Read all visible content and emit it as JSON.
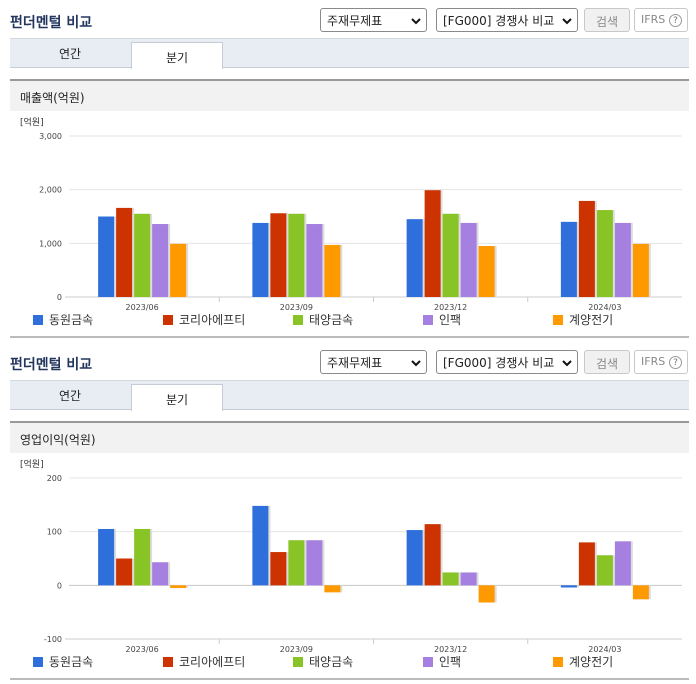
{
  "panels": [
    {
      "title": "펀더멘털 비교",
      "select1": "주재무제표",
      "select2": "[FG000] 경쟁사 비교",
      "button": "검색",
      "ifrs": "IFRS",
      "help": "?",
      "tabs": [
        "연간",
        "분기"
      ]
    },
    {
      "title": "펀더멘털 비교",
      "select1": "주재무제표",
      "select2": "[FG000] 경쟁사 비교",
      "button": "검색",
      "ifrs": "IFRS",
      "help": "?",
      "tabs": [
        "연간",
        "분기"
      ]
    }
  ],
  "chart_data": [
    {
      "type": "bar",
      "title": "매출액(억원)",
      "y_unit": "[억원]",
      "categories": [
        "2023/06",
        "2023/09",
        "2023/12",
        "2024/03"
      ],
      "series": [
        {
          "name": "동원금속",
          "color": "#2f6fdb",
          "values": [
            1500,
            1380,
            1450,
            1400
          ]
        },
        {
          "name": "코리아에프티",
          "color": "#cc3300",
          "values": [
            1660,
            1560,
            1990,
            1790
          ]
        },
        {
          "name": "태양금속",
          "color": "#88c425",
          "values": [
            1550,
            1550,
            1550,
            1620
          ]
        },
        {
          "name": "인팩",
          "color": "#a680e0",
          "values": [
            1360,
            1360,
            1380,
            1380
          ]
        },
        {
          "name": "계양전기",
          "color": "#ff9900",
          "values": [
            990,
            970,
            950,
            990
          ]
        }
      ],
      "ylim": [
        0,
        3000
      ],
      "yticks": [
        0,
        {
          "value": 1000,
          "label": "1,000"
        },
        {
          "value": 2000,
          "label": "2,000"
        },
        {
          "value": 3000,
          "label": "3,000"
        }
      ],
      "grid": true
    },
    {
      "type": "bar",
      "title": "영업이익(억원)",
      "y_unit": "[억원]",
      "categories": [
        "2023/06",
        "2023/09",
        "2023/12",
        "2024/03"
      ],
      "series": [
        {
          "name": "동원금속",
          "color": "#2f6fdb",
          "values": [
            105,
            148,
            103,
            -4
          ]
        },
        {
          "name": "코리아에프티",
          "color": "#cc3300",
          "values": [
            50,
            62,
            114,
            80
          ]
        },
        {
          "name": "태양금속",
          "color": "#88c425",
          "values": [
            105,
            84,
            24,
            56
          ]
        },
        {
          "name": "인팩",
          "color": "#a680e0",
          "values": [
            43,
            84,
            24,
            82
          ]
        },
        {
          "name": "계양전기",
          "color": "#ff9900",
          "values": [
            -5,
            -13,
            -32,
            -26
          ]
        }
      ],
      "ylim": [
        -100,
        200
      ],
      "yticks": [
        -100,
        0,
        100,
        200
      ],
      "grid": true
    }
  ]
}
